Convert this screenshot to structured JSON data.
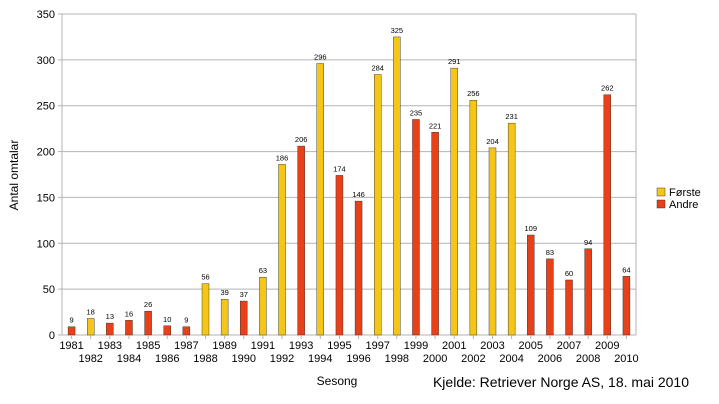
{
  "chart_data": {
    "type": "bar",
    "xlabel": "Sesong",
    "ylabel": "Antal omtalar",
    "ylim": [
      0,
      350
    ],
    "yticks": [
      0,
      50,
      100,
      150,
      200,
      250,
      300,
      350
    ],
    "grid": "horizontal",
    "legend_position": "right",
    "categories": [
      "1981",
      "1982",
      "1983",
      "1984",
      "1985",
      "1986",
      "1987",
      "1988",
      "1989",
      "1990",
      "1991",
      "1992",
      "1993",
      "1994",
      "1995",
      "1996",
      "1997",
      "1998",
      "1999",
      "2000",
      "2001",
      "2002",
      "2003",
      "2004",
      "2005",
      "2006",
      "2007",
      "2008",
      "2009",
      "2010"
    ],
    "series": [
      {
        "name": "Første",
        "color": "#f5c518",
        "values": [
          null,
          18,
          null,
          null,
          null,
          null,
          null,
          56,
          39,
          null,
          63,
          186,
          null,
          296,
          null,
          null,
          284,
          325,
          null,
          null,
          291,
          256,
          204,
          231,
          null,
          null,
          null,
          null,
          null,
          null
        ]
      },
      {
        "name": "Andre",
        "color": "#e8411a",
        "values": [
          9,
          null,
          13,
          16,
          26,
          10,
          9,
          null,
          null,
          37,
          null,
          null,
          206,
          null,
          174,
          146,
          null,
          null,
          235,
          221,
          null,
          null,
          null,
          null,
          109,
          83,
          60,
          94,
          262,
          64
        ]
      }
    ]
  },
  "source_note": "Kjelde: Retriever Norge AS, 18. mai 2010"
}
